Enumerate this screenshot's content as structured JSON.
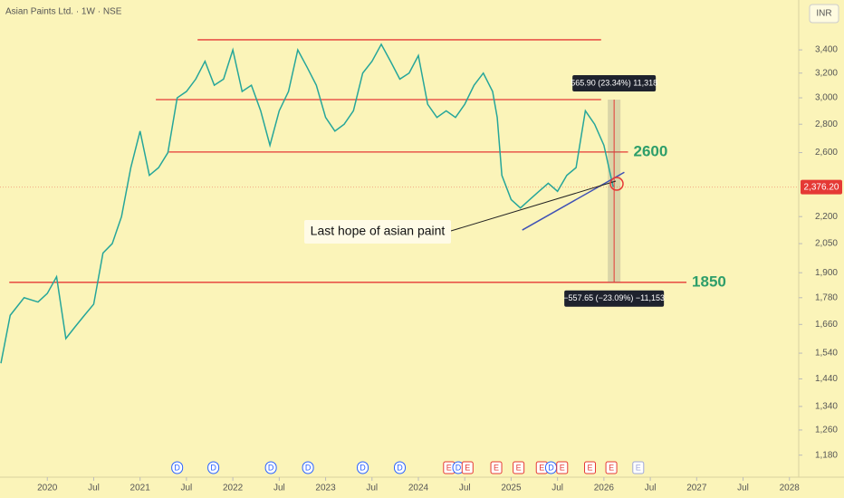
{
  "chart_data": {
    "type": "line",
    "title": "Asian Paints Ltd. · 1W · NSE",
    "currency": "INR",
    "color": "#26a69a",
    "log": true,
    "grid": false,
    "x": [
      2019.5,
      2019.6,
      2019.75,
      2019.9,
      2020.0,
      2020.1,
      2020.2,
      2020.3,
      2020.4,
      2020.5,
      2020.6,
      2020.7,
      2020.8,
      2020.9,
      2021.0,
      2021.1,
      2021.2,
      2021.3,
      2021.4,
      2021.5,
      2021.6,
      2021.7,
      2021.8,
      2021.9,
      2022.0,
      2022.1,
      2022.2,
      2022.3,
      2022.4,
      2022.5,
      2022.6,
      2022.7,
      2022.8,
      2022.9,
      2023.0,
      2023.1,
      2023.2,
      2023.3,
      2023.4,
      2023.5,
      2023.6,
      2023.7,
      2023.8,
      2023.9,
      2024.0,
      2024.1,
      2024.2,
      2024.3,
      2024.4,
      2024.5,
      2024.6,
      2024.7,
      2024.8,
      2024.85,
      2024.9,
      2025.0,
      2025.1,
      2025.2,
      2025.3,
      2025.4,
      2025.5,
      2025.6,
      2025.7,
      2025.8,
      2025.9,
      2026.0,
      2026.1
    ],
    "values": [
      1500,
      1700,
      1780,
      1760,
      1800,
      1880,
      1600,
      1650,
      1700,
      1750,
      2000,
      2050,
      2200,
      2500,
      2750,
      2450,
      2500,
      2600,
      3000,
      3050,
      3150,
      3300,
      3100,
      3150,
      3400,
      3050,
      3100,
      2900,
      2650,
      2900,
      3050,
      3400,
      3250,
      3100,
      2850,
      2750,
      2800,
      2900,
      3200,
      3300,
      3450,
      3300,
      3150,
      3200,
      3350,
      2950,
      2850,
      2900,
      2850,
      2950,
      3100,
      3200,
      3050,
      2850,
      2450,
      2300,
      2250,
      2300,
      2350,
      2400,
      2350,
      2450,
      2500,
      2900,
      2800,
      2650,
      2376.2
    ],
    "xlim": [
      2019.49,
      2028.1
    ],
    "ylim": [
      1114,
      3873
    ],
    "xticks": [
      2020,
      {
        "value": 2020.5,
        "label": "Jul"
      },
      2021,
      {
        "value": 2021.5,
        "label": "Jul"
      },
      2022,
      {
        "value": 2022.5,
        "label": "Jul"
      },
      2023,
      {
        "value": 2023.5,
        "label": "Jul"
      },
      2024,
      {
        "value": 2024.5,
        "label": "Jul"
      },
      2025,
      {
        "value": 2025.5,
        "label": "Jul"
      },
      2026,
      {
        "value": 2026.5,
        "label": "Jul"
      },
      2027,
      {
        "value": 2027.5,
        "label": "Jul"
      },
      2028
    ],
    "yticks": [
      {
        "value": 3400,
        "label": "3,400"
      },
      {
        "value": 3200,
        "label": "3,200"
      },
      {
        "value": 3000,
        "label": "3,000"
      },
      {
        "value": 2800,
        "label": "2,800"
      },
      {
        "value": 2600,
        "label": "2,600"
      },
      {
        "value": 2200,
        "label": "2,200"
      },
      {
        "value": 2050,
        "label": "2,050"
      },
      {
        "value": 1900,
        "label": "1,900"
      },
      {
        "value": 1780,
        "label": "1,780"
      },
      {
        "value": 1660,
        "label": "1,660"
      },
      {
        "value": 1540,
        "label": "1,540"
      },
      {
        "value": 1440,
        "label": "1,440"
      },
      {
        "value": 1340,
        "label": "1,340"
      },
      {
        "value": 1260,
        "label": "1,260"
      },
      {
        "value": 1180,
        "label": "1,180"
      }
    ],
    "current_price": {
      "value": 2376.2,
      "label": "2,376.20"
    },
    "level_color": "#e53935",
    "levels": [
      {
        "value": 3491,
        "x": [
          2021.62,
          2025.97
        ]
      },
      {
        "value": 2986,
        "x": [
          2021.17,
          2025.97
        ]
      },
      {
        "value": 2604,
        "x": [
          2021.31,
          2026.26
        ],
        "label": "2600"
      },
      {
        "value": 1853,
        "x": [
          2019.59,
          2026.89
        ],
        "label": "1850"
      }
    ],
    "trendline": {
      "x": [
        2025.12,
        2026.22
      ],
      "y": [
        2124,
        2470
      ],
      "color": "#3f51b5"
    },
    "callout": "Last hope of asian paint",
    "measure": {
      "x": 2026.11,
      "top": 2986,
      "bottom": 1853,
      "up_label": "565.90 (23.34%) 11,318",
      "down_label": "−557.65 (−23.09%) −11,153"
    },
    "events": [
      {
        "x": 2021.4,
        "label": "D"
      },
      {
        "x": 2021.79,
        "label": "D"
      },
      {
        "x": 2022.41,
        "label": "D"
      },
      {
        "x": 2022.81,
        "label": "D"
      },
      {
        "x": 2023.4,
        "label": "D"
      },
      {
        "x": 2023.8,
        "label": "D"
      },
      {
        "x": 2024.33,
        "label": "E"
      },
      {
        "x": 2024.43,
        "label": "D"
      },
      {
        "x": 2024.53,
        "label": "E"
      },
      {
        "x": 2024.84,
        "label": "E"
      },
      {
        "x": 2025.08,
        "label": "E"
      },
      {
        "x": 2025.33,
        "label": "E"
      },
      {
        "x": 2025.43,
        "label": "D"
      },
      {
        "x": 2025.55,
        "label": "E"
      },
      {
        "x": 2025.85,
        "label": "E"
      },
      {
        "x": 2026.08,
        "label": "E"
      },
      {
        "x": 2026.37,
        "label": "E"
      }
    ]
  }
}
